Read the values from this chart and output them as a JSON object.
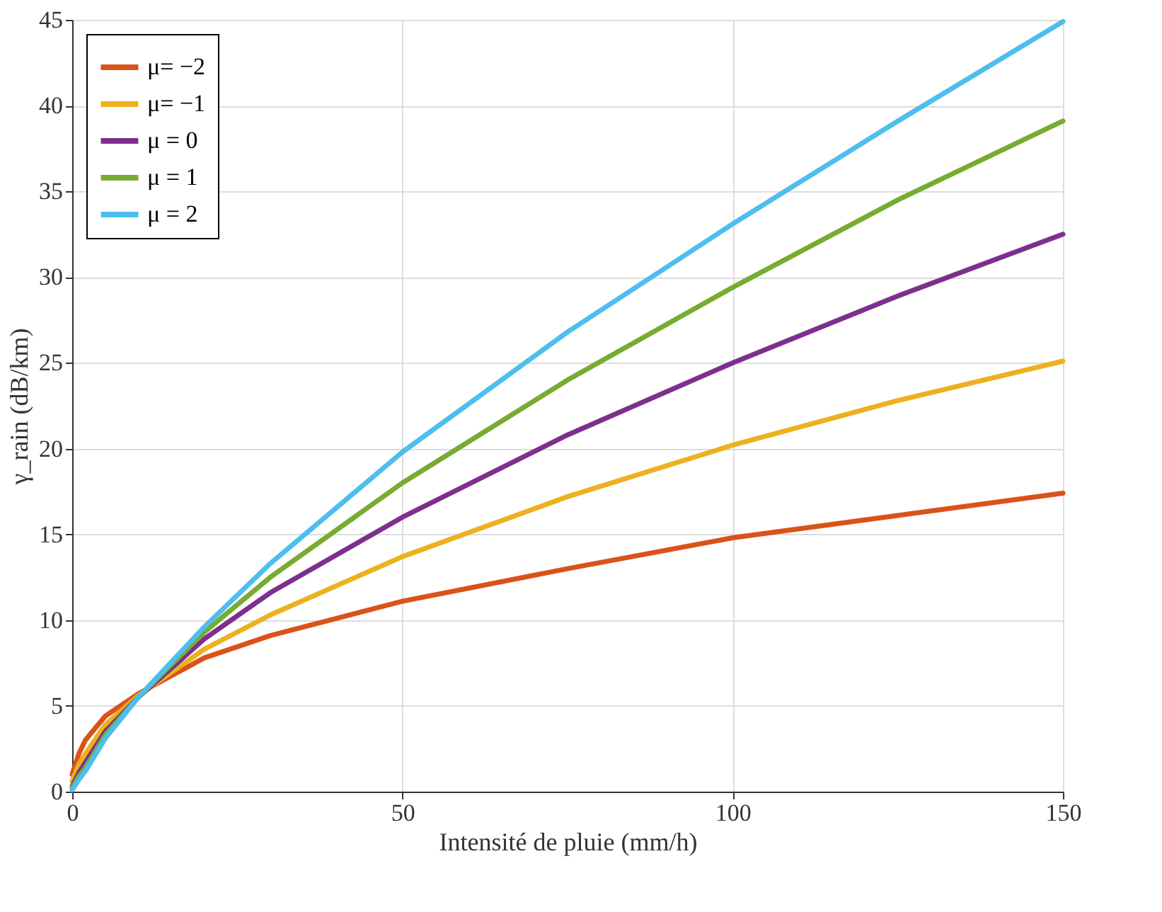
{
  "chart_data": {
    "type": "line",
    "xlabel": "Intensité de pluie (mm/h)",
    "ylabel": "γ_rain (dB/km)",
    "xlim": [
      0,
      150
    ],
    "ylim": [
      0,
      45
    ],
    "xticks": [
      0,
      50,
      100,
      150
    ],
    "yticks": [
      0,
      5,
      10,
      15,
      20,
      25,
      30,
      35,
      40,
      45
    ],
    "grid": true,
    "legend": "top left",
    "line_style": "solid",
    "marker": "none",
    "x": [
      0,
      1,
      2,
      5,
      10,
      20,
      30,
      50,
      75,
      100,
      125,
      150
    ],
    "series": [
      {
        "name": "μ= −2",
        "color": "#d95319",
        "values": [
          1.0,
          2.2,
          3.0,
          4.4,
          5.7,
          7.8,
          9.1,
          11.1,
          13.0,
          14.8,
          16.1,
          17.4
        ]
      },
      {
        "name": "μ= −1",
        "color": "#edb120",
        "values": [
          0.6,
          1.6,
          2.2,
          3.9,
          5.6,
          8.3,
          10.3,
          13.7,
          17.2,
          20.2,
          22.8,
          25.1
        ]
      },
      {
        "name": "μ = 0",
        "color": "#7e2f8e",
        "values": [
          0.3,
          1.1,
          1.7,
          3.5,
          5.5,
          8.9,
          11.6,
          16.0,
          20.8,
          25.0,
          28.9,
          32.5
        ]
      },
      {
        "name": "μ = 1",
        "color": "#77ac30",
        "values": [
          0.2,
          0.9,
          1.4,
          3.3,
          5.5,
          9.3,
          12.5,
          18.0,
          24.0,
          29.4,
          34.5,
          39.1
        ]
      },
      {
        "name": "μ = 2",
        "color": "#4dbeee",
        "values": [
          0.1,
          0.7,
          1.2,
          3.1,
          5.5,
          9.6,
          13.3,
          19.8,
          26.8,
          33.1,
          39.1,
          44.9
        ]
      }
    ]
  }
}
